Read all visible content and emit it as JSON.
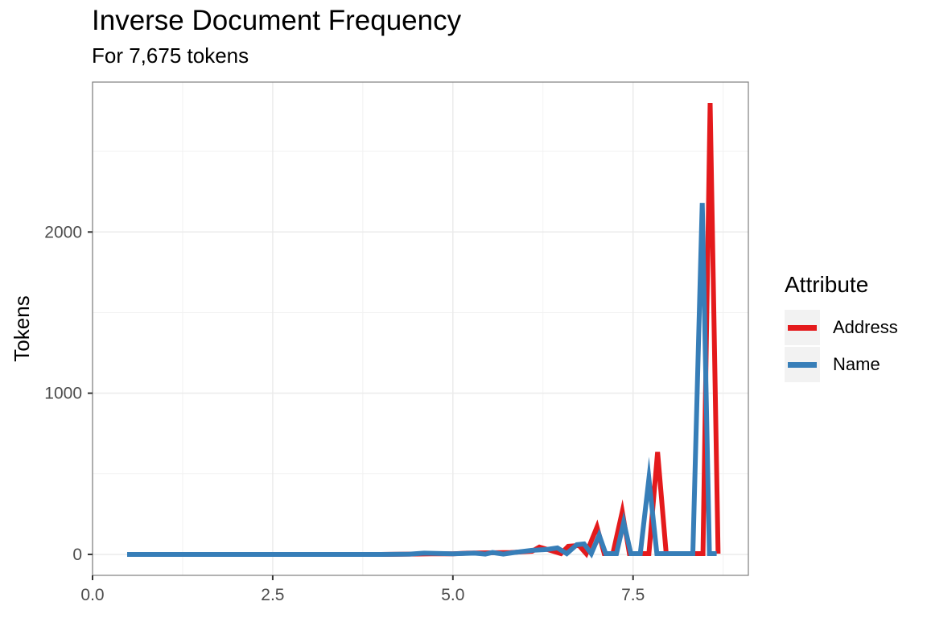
{
  "chart_data": {
    "type": "line",
    "title": "Inverse Document Frequency",
    "subtitle": "For 7,675 tokens",
    "xlabel": "",
    "ylabel": "Tokens",
    "xlim": [
      0,
      9.1
    ],
    "ylim": [
      -130,
      2930
    ],
    "xticks": [
      0.0,
      2.5,
      5.0,
      7.5
    ],
    "xtick_labels": [
      "0.0",
      "2.5",
      "5.0",
      "7.5"
    ],
    "yticks": [
      0,
      1000,
      2000
    ],
    "ytick_labels": [
      "0",
      "1000",
      "2000"
    ],
    "grid": true,
    "legend": {
      "title": "Attribute",
      "position": "right"
    },
    "series": [
      {
        "name": "Address",
        "color": "#e41a1c",
        "points": [
          [
            0.48,
            0
          ],
          [
            0.8,
            0
          ],
          [
            1.2,
            0
          ],
          [
            1.6,
            0
          ],
          [
            2.0,
            0
          ],
          [
            2.4,
            0
          ],
          [
            2.8,
            0
          ],
          [
            3.2,
            0
          ],
          [
            3.6,
            0
          ],
          [
            4.0,
            0
          ],
          [
            4.4,
            2
          ],
          [
            4.7,
            4
          ],
          [
            5.0,
            4
          ],
          [
            5.2,
            8
          ],
          [
            5.5,
            10
          ],
          [
            5.8,
            12
          ],
          [
            6.1,
            20
          ],
          [
            6.2,
            45
          ],
          [
            6.35,
            25
          ],
          [
            6.5,
            5
          ],
          [
            6.6,
            50
          ],
          [
            6.75,
            55
          ],
          [
            6.85,
            5
          ],
          [
            7.0,
            170
          ],
          [
            7.1,
            5
          ],
          [
            7.22,
            5
          ],
          [
            7.35,
            265
          ],
          [
            7.45,
            5
          ],
          [
            7.62,
            5
          ],
          [
            7.72,
            5
          ],
          [
            7.84,
            635
          ],
          [
            7.96,
            5
          ],
          [
            8.0,
            5
          ],
          [
            8.1,
            5
          ],
          [
            8.47,
            5
          ],
          [
            8.57,
            2800
          ],
          [
            8.68,
            5
          ]
        ]
      },
      {
        "name": "Name",
        "color": "#377eb8",
        "points": [
          [
            0.48,
            0
          ],
          [
            0.8,
            0
          ],
          [
            1.2,
            0
          ],
          [
            1.6,
            0
          ],
          [
            2.0,
            0
          ],
          [
            2.4,
            0
          ],
          [
            2.8,
            0
          ],
          [
            3.2,
            0
          ],
          [
            3.6,
            0
          ],
          [
            4.0,
            0
          ],
          [
            4.4,
            2
          ],
          [
            4.6,
            8
          ],
          [
            5.0,
            4
          ],
          [
            5.3,
            8
          ],
          [
            5.45,
            2
          ],
          [
            5.55,
            12
          ],
          [
            5.7,
            2
          ],
          [
            5.85,
            12
          ],
          [
            6.1,
            25
          ],
          [
            6.3,
            30
          ],
          [
            6.45,
            40
          ],
          [
            6.58,
            5
          ],
          [
            6.72,
            60
          ],
          [
            6.82,
            65
          ],
          [
            6.92,
            5
          ],
          [
            7.03,
            120
          ],
          [
            7.12,
            5
          ],
          [
            7.27,
            5
          ],
          [
            7.37,
            200
          ],
          [
            7.47,
            5
          ],
          [
            7.6,
            5
          ],
          [
            7.72,
            470
          ],
          [
            7.83,
            5
          ],
          [
            8.33,
            5
          ],
          [
            8.46,
            2180
          ],
          [
            8.56,
            5
          ],
          [
            8.66,
            5
          ]
        ]
      }
    ]
  }
}
